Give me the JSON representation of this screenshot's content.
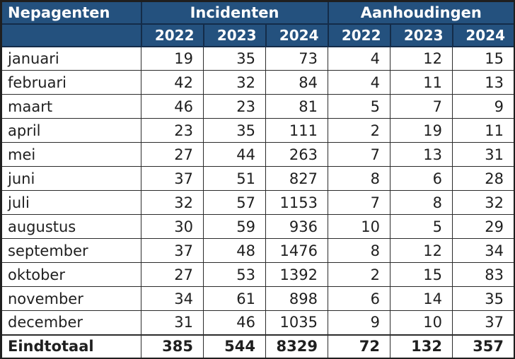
{
  "chart_data": {
    "type": "table",
    "title": "Nepagenten",
    "corner_label": "Nepagenten",
    "column_groups": [
      {
        "label": "Incidenten",
        "years": [
          "2022",
          "2023",
          "2024"
        ]
      },
      {
        "label": "Aanhoudingen",
        "years": [
          "2022",
          "2023",
          "2024"
        ]
      }
    ],
    "columns": [
      "Incidenten 2022",
      "Incidenten 2023",
      "Incidenten 2024",
      "Aanhoudingen 2022",
      "Aanhoudingen 2023",
      "Aanhoudingen 2024"
    ],
    "rows": [
      {
        "label": "januari",
        "values": [
          19,
          35,
          73,
          4,
          12,
          15
        ]
      },
      {
        "label": "februari",
        "values": [
          42,
          32,
          84,
          4,
          11,
          13
        ]
      },
      {
        "label": "maart",
        "values": [
          46,
          23,
          81,
          5,
          7,
          9
        ]
      },
      {
        "label": "april",
        "values": [
          23,
          35,
          111,
          2,
          19,
          11
        ]
      },
      {
        "label": "mei",
        "values": [
          27,
          44,
          263,
          7,
          13,
          31
        ]
      },
      {
        "label": "juni",
        "values": [
          37,
          51,
          827,
          8,
          6,
          28
        ]
      },
      {
        "label": "juli",
        "values": [
          32,
          57,
          1153,
          7,
          8,
          32
        ]
      },
      {
        "label": "augustus",
        "values": [
          30,
          59,
          936,
          10,
          5,
          29
        ]
      },
      {
        "label": "september",
        "values": [
          37,
          48,
          1476,
          8,
          12,
          34
        ]
      },
      {
        "label": "oktober",
        "values": [
          27,
          53,
          1392,
          2,
          15,
          83
        ]
      },
      {
        "label": "november",
        "values": [
          34,
          61,
          898,
          6,
          14,
          35
        ]
      },
      {
        "label": "december",
        "values": [
          31,
          46,
          1035,
          9,
          10,
          37
        ]
      }
    ],
    "total_row": {
      "label": "Eindtotaal",
      "values": [
        385,
        544,
        8329,
        72,
        132,
        357
      ]
    }
  },
  "colors": {
    "header_bg": "#24517E",
    "header_text": "#FFFFFF",
    "header_border": "#142C49",
    "body_border": "#2B2B2B",
    "outer_border": "#1F1F1F",
    "body_text": "#1F1F1F"
  }
}
